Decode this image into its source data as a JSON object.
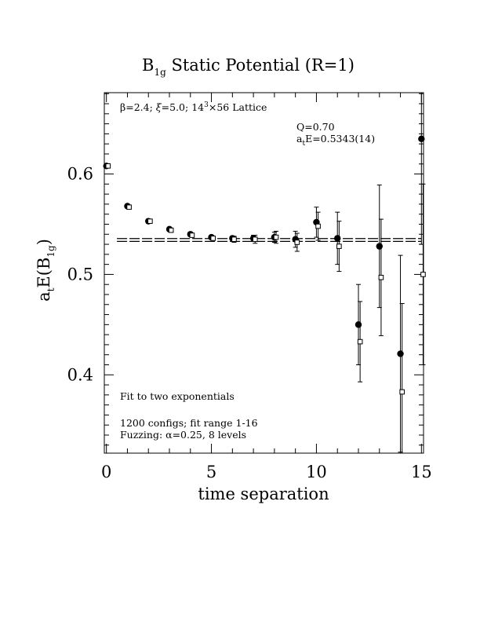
{
  "chart_data": {
    "type": "scatter",
    "title": {
      "main": "B",
      "sub": "1g",
      "rest": " Static Potential (R=1)"
    },
    "xlabel": "time separation",
    "ylabel": {
      "a": "a",
      "a_sub": "t",
      "mid": "E(B",
      "b_sub": "1g",
      "end": ")"
    },
    "xlim": [
      -0.1,
      15.1
    ],
    "ylim": [
      0.322,
      0.681
    ],
    "x_ticks": [
      0,
      5,
      10,
      15
    ],
    "x_tick_labels": [
      "0",
      "5",
      "10",
      "15"
    ],
    "y_ticks": [
      0.4,
      0.5,
      0.6
    ],
    "y_tick_labels": [
      "0.4",
      "0.5",
      "0.6"
    ],
    "grid": false,
    "annotations": {
      "lattice": {
        "beta": "β=2.4; ",
        "xi": "ξ",
        "rest": "=5.0; 14",
        "exp": "3",
        "tail": "×56 Lattice"
      },
      "q": "Q=0.70",
      "energy": {
        "a": "a",
        "sub": "t",
        "rest": "E=0.5343(14)"
      },
      "fit": "Fit to two exponentials",
      "configs": "1200 configs; fit range 1-16",
      "fuzzing": "Fuzzing: α=0.25, 8 levels"
    },
    "fit": {
      "value": 0.5343,
      "error": 0.0014,
      "x_range": [
        0.5,
        15
      ]
    },
    "series": [
      {
        "marker": "filled-circle",
        "points": [
          {
            "x": 0,
            "y": 0.608,
            "err": 0.001
          },
          {
            "x": 1,
            "y": 0.568,
            "err": 0.002
          },
          {
            "x": 2,
            "y": 0.553,
            "err": 0.002
          },
          {
            "x": 3,
            "y": 0.545,
            "err": 0.002
          },
          {
            "x": 4,
            "y": 0.54,
            "err": 0.002
          },
          {
            "x": 5,
            "y": 0.537,
            "err": 0.002
          },
          {
            "x": 6,
            "y": 0.536,
            "err": 0.002
          },
          {
            "x": 7,
            "y": 0.536,
            "err": 0.003
          },
          {
            "x": 8,
            "y": 0.537,
            "err": 0.005
          },
          {
            "x": 9,
            "y": 0.535,
            "err": 0.008
          },
          {
            "x": 10,
            "y": 0.552,
            "err": 0.015
          },
          {
            "x": 11,
            "y": 0.536,
            "err": 0.026
          },
          {
            "x": 12,
            "y": 0.45,
            "err": 0.04
          },
          {
            "x": 13,
            "y": 0.528,
            "err": 0.061
          },
          {
            "x": 14,
            "y": 0.421,
            "err": 0.098
          },
          {
            "x": 15,
            "y": 0.635,
            "err": 0.105
          }
        ]
      },
      {
        "marker": "open-square",
        "points": [
          {
            "x": 0,
            "y": 0.608,
            "err": 0.001
          },
          {
            "x": 1,
            "y": 0.567,
            "err": 0.001
          },
          {
            "x": 2,
            "y": 0.553,
            "err": 0.001
          },
          {
            "x": 3,
            "y": 0.544,
            "err": 0.002
          },
          {
            "x": 4,
            "y": 0.539,
            "err": 0.002
          },
          {
            "x": 5,
            "y": 0.536,
            "err": 0.002
          },
          {
            "x": 6,
            "y": 0.535,
            "err": 0.003
          },
          {
            "x": 7,
            "y": 0.535,
            "err": 0.004
          },
          {
            "x": 8,
            "y": 0.537,
            "err": 0.006
          },
          {
            "x": 9,
            "y": 0.532,
            "err": 0.009
          },
          {
            "x": 10,
            "y": 0.548,
            "err": 0.014
          },
          {
            "x": 11,
            "y": 0.528,
            "err": 0.025
          },
          {
            "x": 12,
            "y": 0.433,
            "err": 0.04
          },
          {
            "x": 13,
            "y": 0.497,
            "err": 0.058
          },
          {
            "x": 14,
            "y": 0.383,
            "err": 0.088
          },
          {
            "x": 15,
            "y": 0.5,
            "err": 0.09
          }
        ]
      }
    ]
  }
}
